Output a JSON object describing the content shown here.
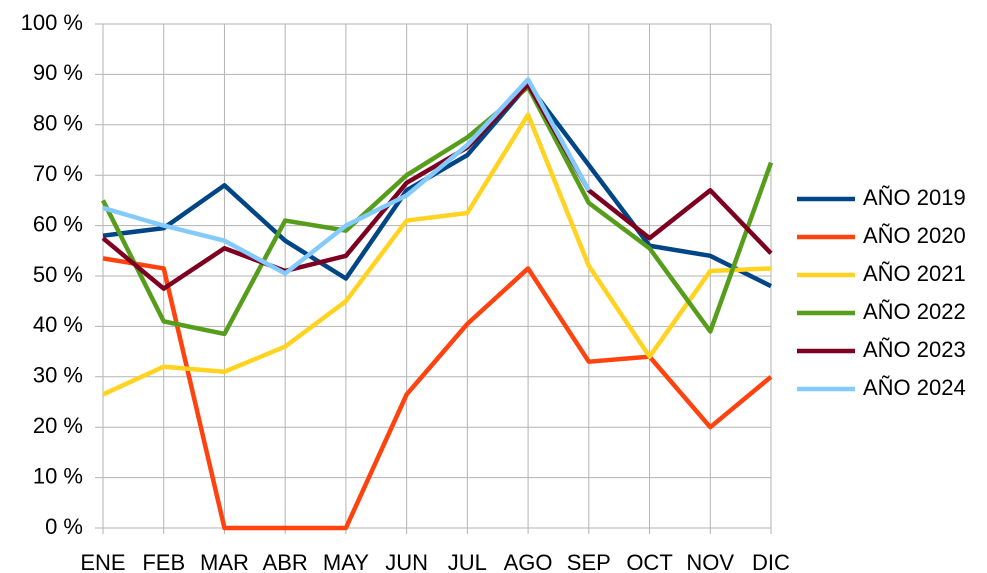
{
  "chart_data": {
    "type": "line",
    "categories": [
      "ENE",
      "FEB",
      "MAR",
      "ABR",
      "MAY",
      "JUN",
      "JUL",
      "AGO",
      "SEP",
      "OCT",
      "NOV",
      "DIC"
    ],
    "series": [
      {
        "name": "AÑO 2019",
        "color": "#004586",
        "values": [
          58,
          59.5,
          68,
          57,
          49.5,
          67,
          74,
          88,
          72,
          56,
          54,
          48
        ]
      },
      {
        "name": "AÑO 2020",
        "color": "#ff420e",
        "values": [
          53.5,
          51.5,
          0,
          0,
          0,
          26.5,
          40.5,
          51.5,
          33,
          34,
          20,
          30
        ]
      },
      {
        "name": "AÑO 2021",
        "color": "#ffd320",
        "values": [
          26.5,
          32,
          31,
          36,
          45,
          61,
          62.5,
          82,
          52,
          34,
          51,
          51.5
        ]
      },
      {
        "name": "AÑO 2022",
        "color": "#579d1c",
        "values": [
          65,
          41,
          38.5,
          61,
          59,
          70,
          77.5,
          87.5,
          64.5,
          55.5,
          39,
          72.5
        ]
      },
      {
        "name": "AÑO 2023",
        "color": "#7e0021",
        "values": [
          57.5,
          47.5,
          55.5,
          51,
          54,
          68.5,
          75.5,
          88,
          67,
          57.5,
          67,
          54.5
        ]
      },
      {
        "name": "AÑO 2024",
        "color": "#83caff",
        "values": [
          63.5,
          60,
          57,
          50.5,
          60,
          66,
          76,
          89,
          67,
          null,
          null,
          null
        ]
      }
    ],
    "ylim": [
      0,
      100
    ],
    "yticks": [
      {
        "value": 0,
        "label": "0 %"
      },
      {
        "value": 10,
        "label": "10 %"
      },
      {
        "value": 20,
        "label": "20 %"
      },
      {
        "value": 30,
        "label": "30 %"
      },
      {
        "value": 40,
        "label": "40 %"
      },
      {
        "value": 50,
        "label": "50 %"
      },
      {
        "value": 60,
        "label": "60 %"
      },
      {
        "value": 70,
        "label": "70 %"
      },
      {
        "value": 80,
        "label": "80 %"
      },
      {
        "value": 90,
        "label": "90 %"
      },
      {
        "value": 100,
        "label": "100 %"
      }
    ],
    "grid": true,
    "legend": "right"
  }
}
